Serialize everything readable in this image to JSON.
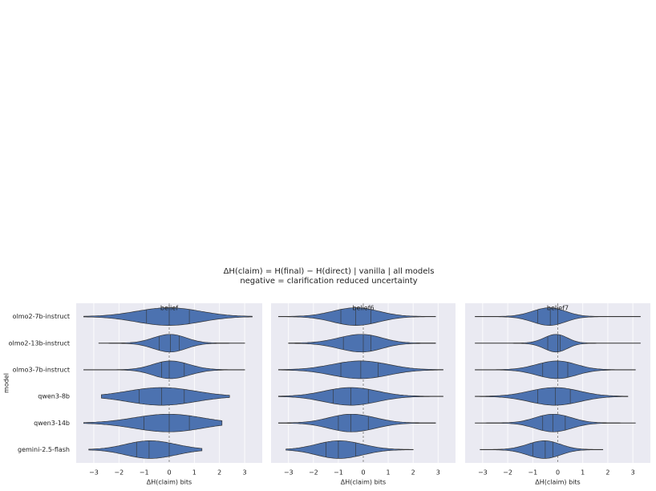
{
  "title": "ΔH(claim) = H(final) − H(direct)  |  vanilla  |  all models",
  "subtitle": "negative = clarification reduced uncertainty",
  "chart_data": [
    {
      "type": "violin",
      "title": "belief",
      "xlabel": "ΔH(claim)  bits",
      "ylabel": "model",
      "color": "#4c72b0",
      "refline": 0,
      "categories": [
        "olmo2-7b-instruct",
        "olmo2-13b-instruct",
        "olmo3-7b-instruct",
        "qwen3-8b",
        "qwen3-14b",
        "gemini-2.5-flash"
      ],
      "xlim": [
        -3.7,
        3.7
      ],
      "xticks": [
        {
          "value": -3,
          "label": "−3"
        },
        {
          "value": -2,
          "label": "−2"
        },
        {
          "value": -1,
          "label": "−1"
        },
        0,
        1,
        2,
        3
      ],
      "values": [
        [
          -3.4,
          -0.9,
          0,
          0.8,
          3.3
        ],
        [
          -2.8,
          -0.4,
          0.05,
          0.4,
          3.0
        ],
        [
          -3.4,
          -0.3,
          0,
          0.6,
          3.0
        ],
        [
          -2.7,
          -1.2,
          -0.3,
          0.6,
          2.4
        ],
        [
          -3.4,
          -1.0,
          0,
          0.8,
          2.1
        ],
        [
          -3.2,
          -1.3,
          -0.8,
          0,
          1.3
        ]
      ]
    },
    {
      "type": "violin",
      "title": "belief6",
      "xlabel": "ΔH(claim)  bits",
      "color": "#4c72b0",
      "refline": 0,
      "xlim": [
        -3.7,
        3.7
      ],
      "xticks": [
        {
          "value": -3,
          "label": "−3"
        },
        {
          "value": -2,
          "label": "−2"
        },
        {
          "value": -1,
          "label": "−1"
        },
        0,
        1,
        2,
        3
      ],
      "values": [
        [
          -3.4,
          -0.9,
          -0.3,
          0.3,
          2.9
        ],
        [
          -3.0,
          -0.8,
          0,
          0.3,
          2.9
        ],
        [
          -3.4,
          -0.9,
          -0.1,
          0.6,
          3.2
        ],
        [
          -3.4,
          -1.2,
          -0.5,
          0.2,
          3.2
        ],
        [
          -3.4,
          -1.0,
          -0.5,
          0.2,
          2.9
        ],
        [
          -3.1,
          -1.5,
          -1.0,
          -0.3,
          2.0
        ]
      ]
    },
    {
      "type": "violin",
      "title": "belief7",
      "xlabel": "ΔH(claim)  bits",
      "color": "#4c72b0",
      "refline": 0,
      "xlim": [
        -3.7,
        3.7
      ],
      "xticks": [
        {
          "value": -3,
          "label": "−3"
        },
        {
          "value": -2,
          "label": "−2"
        },
        {
          "value": -1,
          "label": "−1"
        },
        0,
        1,
        2,
        3
      ],
      "values": [
        [
          -3.3,
          -0.8,
          -0.3,
          0,
          3.3
        ],
        [
          -3.3,
          -0.4,
          0,
          0.1,
          3.3
        ],
        [
          -3.3,
          -0.6,
          0,
          0.4,
          3.1
        ],
        [
          -3.3,
          -0.8,
          -0.1,
          0.5,
          2.8
        ],
        [
          -3.3,
          -0.6,
          -0.2,
          0.3,
          3.1
        ],
        [
          -3.1,
          -1.0,
          -0.5,
          -0.2,
          1.8
        ]
      ]
    }
  ]
}
